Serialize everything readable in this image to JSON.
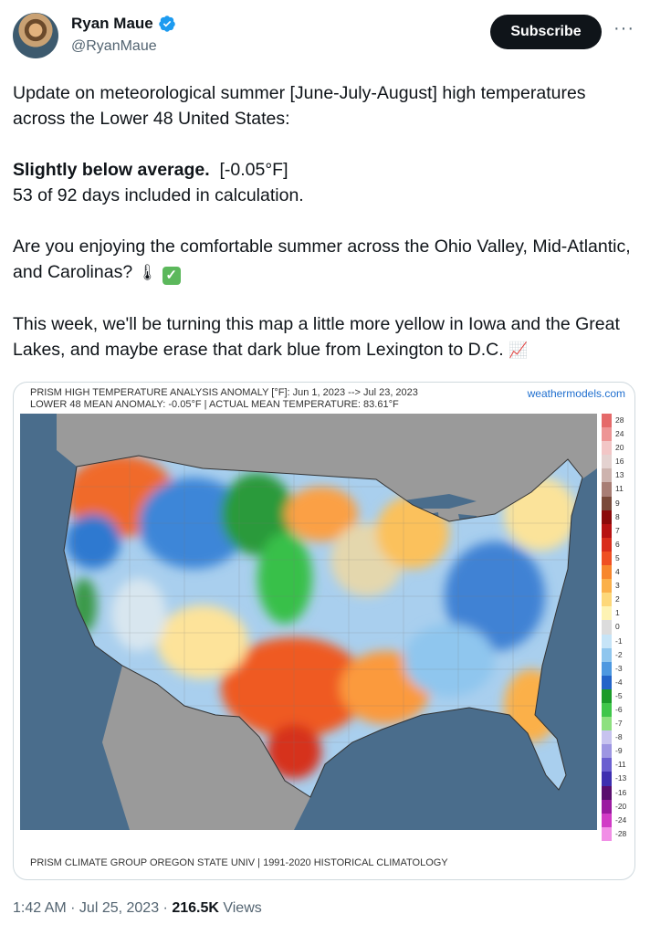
{
  "author": {
    "display_name": "Ryan Maue",
    "handle": "@RyanMaue",
    "verified_color": "#1d9bf0"
  },
  "header": {
    "subscribe_label": "Subscribe",
    "more_label": "···"
  },
  "tweet": {
    "line1": "Update on meteorological summer [June-July-August] high temperatures across the Lower 48 United States:",
    "bold_phrase": "Slightly below average.",
    "anomaly_value": "[-0.05°F]",
    "days_line": "53 of 92 days included in calculation.",
    "question": "Are you enjoying the comfortable summer across the Ohio Valley, Mid-Atlantic, and Carolinas?",
    "question_emojis": [
      "thermometer-emoji",
      "check-mark-emoji"
    ],
    "outlook": "This week, we'll be turning this map a little more yellow in Iowa and the Great Lakes, and maybe erase that dark blue from Lexington to D.C.",
    "outlook_emoji": "chart-increasing-emoji"
  },
  "map": {
    "title_line1": "PRISM HIGH TEMPERATURE ANALYSIS ANOMALY [°F]: Jun 1, 2023 --> Jul 23, 2023",
    "title_line2": "LOWER 48 MEAN ANOMALY: -0.05°F | ACTUAL MEAN TEMPERATURE: 83.61°F",
    "watermark": "weathermodels.com",
    "footer": "PRISM CLIMATE GROUP OREGON STATE UNIV | 1991-2020 HISTORICAL CLIMATOLOGY",
    "legend": [
      {
        "label": "28",
        "color": "#e56a6a"
      },
      {
        "label": "24",
        "color": "#ed9595"
      },
      {
        "label": "20",
        "color": "#f2c6c6"
      },
      {
        "label": "16",
        "color": "#e4d2d0"
      },
      {
        "label": "13",
        "color": "#cdb3ae"
      },
      {
        "label": "11",
        "color": "#a87e75"
      },
      {
        "label": "9",
        "color": "#7a4a3a"
      },
      {
        "label": "8",
        "color": "#8b0a0a"
      },
      {
        "label": "7",
        "color": "#b71212"
      },
      {
        "label": "6",
        "color": "#d92d1c"
      },
      {
        "label": "5",
        "color": "#ef5023"
      },
      {
        "label": "4",
        "color": "#f7872d"
      },
      {
        "label": "3",
        "color": "#fbb04a"
      },
      {
        "label": "2",
        "color": "#fdd87a"
      },
      {
        "label": "1",
        "color": "#fdf3b4"
      },
      {
        "label": "0",
        "color": "#dcdcdc"
      },
      {
        "label": "-1",
        "color": "#c6e4f7"
      },
      {
        "label": "-2",
        "color": "#8fc6ee"
      },
      {
        "label": "-3",
        "color": "#4d98e0"
      },
      {
        "label": "-4",
        "color": "#2364c8"
      },
      {
        "label": "-5",
        "color": "#1b9b2a"
      },
      {
        "label": "-6",
        "color": "#3fc64a"
      },
      {
        "label": "-7",
        "color": "#8de07f"
      },
      {
        "label": "-8",
        "color": "#c7c3ef"
      },
      {
        "label": "-9",
        "color": "#9d96e2"
      },
      {
        "label": "-11",
        "color": "#6a5fd0"
      },
      {
        "label": "-13",
        "color": "#3e2fb0"
      },
      {
        "label": "-16",
        "color": "#5a0e6e"
      },
      {
        "label": "-20",
        "color": "#9a1aa0"
      },
      {
        "label": "-24",
        "color": "#d13bc6"
      },
      {
        "label": "-28",
        "color": "#f18ee6"
      }
    ]
  },
  "footer": {
    "time_date": "1:42 AM · Jul 25, 2023 · ",
    "views_count": "216.5K",
    "views_label": " Views"
  }
}
